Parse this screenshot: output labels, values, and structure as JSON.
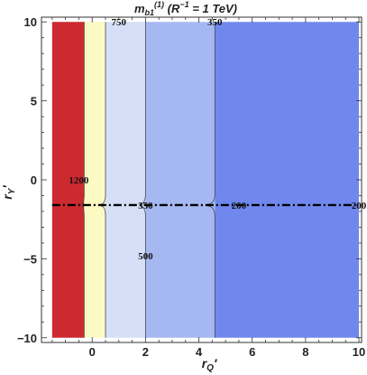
{
  "chart_data": {
    "type": "heatmap",
    "title": "m_b1^(1) (R^-1 = 1 TeV)",
    "title_parts": {
      "main": "m",
      "sub": "b1",
      "sup": "(1)",
      "rest": " (R",
      "rest_sup": "−1",
      "tail": " = 1 TeV)"
    },
    "xlabel": {
      "main": "r",
      "sub": "Q",
      "prime": "′"
    },
    "ylabel": {
      "main": "r",
      "sub": "Y",
      "prime": "′"
    },
    "xlim": [
      -1.9,
      10.1
    ],
    "ylim": [
      -10.3,
      10.3
    ],
    "x_ticks": [
      {
        "v": 0,
        "label": "0"
      },
      {
        "v": 2,
        "label": "2"
      },
      {
        "v": 4,
        "label": "4"
      },
      {
        "v": 6,
        "label": "6"
      },
      {
        "v": 8,
        "label": "8"
      },
      {
        "v": 10,
        "label": "10"
      }
    ],
    "y_ticks": [
      {
        "v": 10,
        "label": "10"
      },
      {
        "v": 5,
        "label": "5"
      },
      {
        "v": 0,
        "label": "0"
      },
      {
        "v": -5,
        "label": "−5"
      },
      {
        "v": -10,
        "label": "−10"
      }
    ],
    "plot_region": {
      "x_min": -1.5,
      "x_max": 10,
      "y_min": -10,
      "y_max": 10
    },
    "dashed_line_y": -1.6,
    "bands": [
      {
        "label": "1200",
        "x_from": -1.5,
        "x_to": -0.3,
        "color": "#cc2a2f"
      },
      {
        "label": "750",
        "x_from": -0.3,
        "x_to": 0.5,
        "color": "#fdf9c3"
      },
      {
        "label": "500",
        "x_from": 0.5,
        "x_to": 2.0,
        "color": "#d5dff6"
      },
      {
        "label": "350",
        "x_from": 2.0,
        "x_to": 4.6,
        "color": "#a6b8f2"
      },
      {
        "label": "200",
        "x_from": 4.6,
        "x_to": 10.0,
        "color": "#7088ee"
      }
    ],
    "contour_labels": [
      {
        "text": "750",
        "x": 1.0,
        "y": 10.0
      },
      {
        "text": "350",
        "x": 4.6,
        "y": 10.0
      },
      {
        "text": "1200",
        "x": -0.5,
        "y": 0.0
      },
      {
        "text": "350",
        "x": 2.0,
        "y": -1.6
      },
      {
        "text": "200",
        "x": 5.5,
        "y": -1.6
      },
      {
        "text": "500",
        "x": 2.0,
        "y": -4.8
      },
      {
        "text": "200",
        "x": 10.0,
        "y": -1.6
      }
    ]
  }
}
